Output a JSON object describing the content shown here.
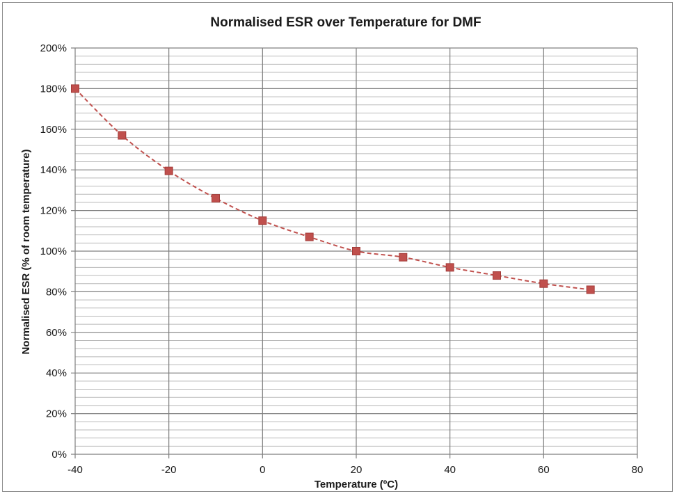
{
  "chart_data": {
    "type": "scatter",
    "title": "Normalised ESR over Temperature for DMF",
    "xlabel": "Temperature (ºC)",
    "ylabel": "Normalised ESR (% of room temperature)",
    "xlim": [
      -40,
      80
    ],
    "ylim": [
      0,
      200
    ],
    "x_ticks": [
      "-40",
      "-20",
      "0",
      "20",
      "40",
      "60",
      "80"
    ],
    "y_ticks": [
      "0%",
      "20%",
      "40%",
      "60%",
      "80%",
      "100%",
      "120%",
      "140%",
      "160%",
      "180%",
      "200%"
    ],
    "grid": true,
    "legend": "none",
    "trendline": "dashed",
    "series": [
      {
        "x": [
          -40,
          -30,
          -20,
          -10,
          0,
          10,
          20,
          30,
          40,
          50,
          60,
          70
        ],
        "y": [
          180,
          157,
          139.5,
          126,
          115,
          107,
          100,
          97,
          92,
          88,
          84,
          81
        ],
        "color": "#c0504d"
      }
    ]
  }
}
